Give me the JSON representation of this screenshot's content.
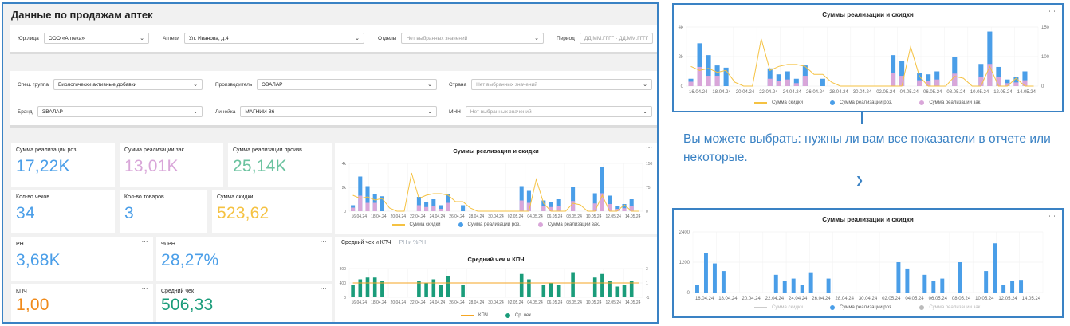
{
  "dashboard": {
    "title": "Данные по продажам аптек",
    "filters_row1": [
      {
        "label": "Юр.лица",
        "value": "ООО «Аптека»",
        "placeholder": ""
      },
      {
        "label": "Аптеки",
        "value": "Ул. Иванова, д.4",
        "placeholder": ""
      },
      {
        "label": "Отделы",
        "value": "",
        "placeholder": "Нет выбранных значений"
      },
      {
        "label": "Период",
        "value": "",
        "placeholder": "ДД.ММ.ГГГГ - ДД.ММ.ГГГГ"
      }
    ],
    "filters_row2": [
      {
        "label": "Спец. группа",
        "value": "Биологически активные добавки",
        "placeholder": ""
      },
      {
        "label": "Производитель",
        "value": "ЭВАЛАР",
        "placeholder": ""
      },
      {
        "label": "Страна",
        "value": "",
        "placeholder": "Нет выбранных значений"
      }
    ],
    "filters_row3": [
      {
        "label": "Брэнд",
        "value": "ЭВАЛАР",
        "placeholder": ""
      },
      {
        "label": "Линейка",
        "value": "МАГНИЙ В6",
        "placeholder": ""
      },
      {
        "label": "МНН",
        "value": "",
        "placeholder": "Нет выбранных значений"
      }
    ],
    "kpis": [
      {
        "title": "Сумма реализации роз.",
        "value": "17,22K",
        "color": "#4a9ee8"
      },
      {
        "title": "Сумма реализации зак.",
        "value": "13,01K",
        "color": "#d9a6d9"
      },
      {
        "title": "Сумма реализации произв.",
        "value": "25,14K",
        "color": "#6cc3a0"
      },
      {
        "title": "Кол-во чеков",
        "value": "34",
        "color": "#4a9ee8"
      },
      {
        "title": "Кол-во товаров",
        "value": "3",
        "color": "#4a9ee8"
      },
      {
        "title": "Сумма скидки",
        "value": "523,62",
        "color": "#f5c242"
      },
      {
        "title": "РН",
        "value": "3,68K",
        "color": "#4a9ee8"
      },
      {
        "title": "% РН",
        "value": "28,27%",
        "color": "#4a9ee8"
      },
      {
        "title": "КПЧ",
        "value": "1,00",
        "color": "#f08a1a"
      },
      {
        "title": "Средний чек",
        "value": "506,33",
        "color": "#1a9c7a"
      }
    ],
    "menu_icon": "⋯",
    "tabs": {
      "active": "Средний чек и КПЧ",
      "inactive": "РН и %РН"
    }
  },
  "side_note": "Вы можете выбрать: нужны ли вам все показатели в отчете или некоторые.",
  "colors": {
    "retail": "#4a9ee8",
    "purchase": "#d9a6d9",
    "discount": "#f5c242",
    "kpch": "#f5a623",
    "avg_check": "#1a9c7a",
    "frame": "#3a82c4"
  },
  "chart_data": [
    {
      "id": "sales_discount",
      "type": "bar",
      "title": "Суммы реализации и скидки",
      "x_tick_labels": [
        "16.04.24",
        "18.04.24",
        "20.04.24",
        "22.04.24",
        "24.04.24",
        "26.04.24",
        "28.04.24",
        "30.04.24",
        "02.05.24",
        "04.05.24",
        "06.05.24",
        "08.05.24",
        "10.05.24",
        "12.05.24",
        "14.05.24"
      ],
      "y_left_ticks": [
        "0",
        "2k",
        "4k"
      ],
      "y_right_ticks": [
        "0",
        "75",
        "150"
      ],
      "ylim_left": [
        0,
        4000
      ],
      "ylim_right": [
        0,
        150
      ],
      "series": [
        {
          "name": "Сумма скидки",
          "kind": "line",
          "axis": "right",
          "values": [
            50,
            40,
            45,
            35,
            40,
            10,
            0,
            0,
            120,
            40,
            50,
            55,
            55,
            50,
            30,
            30,
            10,
            0,
            0,
            0,
            0,
            0,
            0,
            0,
            0,
            100,
            25,
            0,
            0,
            0,
            25,
            20,
            0,
            0,
            50,
            0,
            0,
            20,
            0,
            0
          ]
        },
        {
          "name": "Сумма реализации роз.",
          "kind": "bar",
          "axis": "left",
          "values": [
            500,
            2900,
            2100,
            1400,
            1250,
            0,
            0,
            0,
            0,
            1200,
            800,
            1000,
            500,
            1400,
            0,
            500,
            0,
            0,
            0,
            0,
            0,
            0,
            0,
            2100,
            1700,
            0,
            900,
            800,
            1000,
            0,
            2000,
            0,
            0,
            1500,
            3700,
            1300,
            450,
            600,
            1000,
            0
          ]
        },
        {
          "name": "Сумма реализации зак.",
          "kind": "bar",
          "axis": "left",
          "values": [
            300,
            1300,
            700,
            700,
            0,
            0,
            0,
            0,
            0,
            500,
            350,
            450,
            200,
            700,
            0,
            0,
            0,
            0,
            0,
            0,
            0,
            0,
            0,
            900,
            700,
            0,
            400,
            350,
            450,
            0,
            850,
            0,
            0,
            650,
            1500,
            600,
            200,
            250,
            400,
            0
          ]
        }
      ]
    },
    {
      "id": "avg_check_kpch",
      "type": "bar",
      "title": "Средний чек и КПЧ",
      "x_tick_labels": [
        "16.04.24",
        "18.04.24",
        "20.04.24",
        "22.04.24",
        "24.04.24",
        "26.04.24",
        "28.04.24",
        "30.04.24",
        "02.05.24",
        "04.05.24",
        "06.05.24",
        "08.05.24",
        "10.05.24",
        "12.05.24",
        "14.05.24"
      ],
      "y_left_ticks": [
        "0",
        "400",
        "800"
      ],
      "y_right_ticks": [
        "-1",
        "1",
        "3"
      ],
      "ylim_left": [
        0,
        800
      ],
      "ylim_right": [
        -1,
        3
      ],
      "series": [
        {
          "name": "КПЧ",
          "kind": "line",
          "axis": "right",
          "values": [
            1,
            1,
            1,
            1,
            1,
            1,
            1,
            1,
            1,
            1,
            1,
            1,
            1,
            1,
            1,
            1,
            1,
            1,
            1,
            1,
            1,
            1,
            1,
            1,
            1,
            1,
            1,
            1,
            1,
            1,
            1,
            1,
            1,
            1,
            1,
            1,
            1,
            1,
            1,
            1
          ]
        },
        {
          "name": "Ср. чек",
          "kind": "bar",
          "axis": "left",
          "values": [
            350,
            500,
            550,
            550,
            450,
            0,
            0,
            0,
            0,
            450,
            400,
            500,
            350,
            600,
            0,
            350,
            0,
            0,
            0,
            0,
            0,
            0,
            0,
            650,
            500,
            0,
            350,
            400,
            350,
            0,
            700,
            0,
            0,
            550,
            650,
            450,
            300,
            350,
            450,
            0
          ]
        }
      ]
    },
    {
      "id": "right_full",
      "type": "bar",
      "title": "Суммы реализации и скидки",
      "x_tick_labels": [
        "16.04.24",
        "18.04.24",
        "20.04.24",
        "22.04.24",
        "24.04.24",
        "26.04.24",
        "28.04.24",
        "30.04.24",
        "02.05.24",
        "04.05.24",
        "06.05.24",
        "08.05.24",
        "10.05.24",
        "12.05.24",
        "14.05.24"
      ],
      "y_left_ticks": [
        "0",
        "2k",
        "4k"
      ],
      "y_right_ticks": [
        "0",
        "100",
        "150"
      ],
      "ylim_left": [
        0,
        4000
      ],
      "ylim_right": [
        0,
        150
      ],
      "series": [
        {
          "name": "Сумма скидки",
          "kind": "line",
          "axis": "right",
          "values": [
            50,
            40,
            45,
            35,
            40,
            10,
            0,
            0,
            120,
            40,
            50,
            55,
            55,
            50,
            30,
            30,
            10,
            0,
            0,
            0,
            0,
            0,
            0,
            0,
            0,
            100,
            25,
            0,
            0,
            0,
            25,
            20,
            0,
            0,
            50,
            0,
            0,
            20,
            0,
            0
          ]
        },
        {
          "name": "Сумма реализации роз.",
          "kind": "bar",
          "axis": "left",
          "values": [
            500,
            2900,
            2100,
            1400,
            1250,
            0,
            0,
            0,
            0,
            1200,
            800,
            1000,
            500,
            1400,
            0,
            500,
            0,
            0,
            0,
            0,
            0,
            0,
            0,
            2100,
            1700,
            0,
            900,
            800,
            1000,
            0,
            2000,
            0,
            0,
            1500,
            3700,
            1300,
            450,
            600,
            1000,
            0
          ]
        },
        {
          "name": "Сумма реализации зак.",
          "kind": "bar",
          "axis": "left",
          "values": [
            300,
            1300,
            700,
            700,
            0,
            0,
            0,
            0,
            0,
            500,
            350,
            450,
            200,
            700,
            0,
            0,
            0,
            0,
            0,
            0,
            0,
            0,
            0,
            900,
            700,
            0,
            400,
            350,
            450,
            0,
            850,
            0,
            0,
            650,
            1500,
            600,
            200,
            250,
            400,
            0
          ]
        }
      ]
    },
    {
      "id": "right_filtered",
      "type": "bar",
      "title": "Суммы реализации и скидки",
      "x_tick_labels": [
        "16.04.24",
        "18.04.24",
        "20.04.24",
        "22.04.24",
        "24.04.24",
        "26.04.24",
        "28.04.24",
        "30.04.24",
        "02.05.24",
        "04.05.24",
        "06.05.24",
        "08.05.24",
        "10.05.24",
        "12.05.24",
        "14.05.24"
      ],
      "y_left_ticks": [
        "0",
        "1200",
        "2400"
      ],
      "ylim_left": [
        0,
        2400
      ],
      "series": [
        {
          "name": "Сумма скидки",
          "kind": "line",
          "axis": "right",
          "hidden": true,
          "values": []
        },
        {
          "name": "Сумма реализации роз.",
          "kind": "bar",
          "axis": "left",
          "values": [
            300,
            1550,
            1150,
            850,
            0,
            0,
            0,
            0,
            0,
            700,
            450,
            550,
            300,
            800,
            0,
            550,
            0,
            0,
            0,
            0,
            0,
            0,
            0,
            1200,
            950,
            0,
            700,
            450,
            550,
            0,
            1200,
            0,
            0,
            850,
            1950,
            300,
            450,
            500,
            0,
            0
          ]
        },
        {
          "name": "Сумма реализации зак.",
          "kind": "bar",
          "axis": "left",
          "hidden": true,
          "values": []
        }
      ]
    }
  ]
}
